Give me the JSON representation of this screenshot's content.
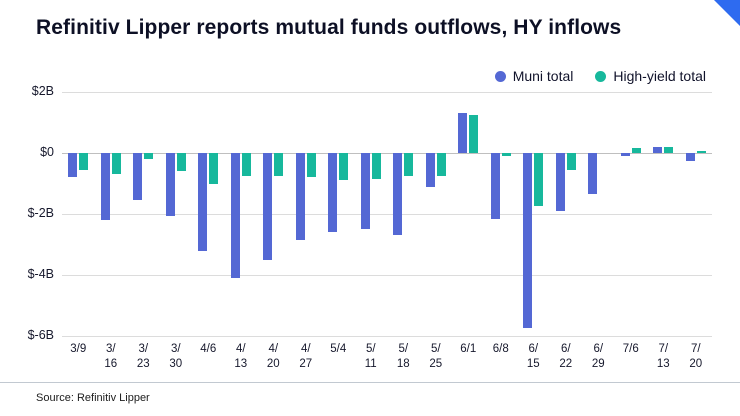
{
  "title": "Refinitiv Lipper reports mutual funds outflows, HY inflows",
  "source": "Source: Refinitiv Lipper",
  "accent_color": "#2e6bf0",
  "chart_data": {
    "type": "bar",
    "title": "Refinitiv Lipper reports mutual funds outflows, HY inflows",
    "categories": [
      "3/9",
      "3/16",
      "3/23",
      "3/30",
      "4/6",
      "4/13",
      "4/20",
      "4/27",
      "5/4",
      "5/11",
      "5/18",
      "5/25",
      "6/1",
      "6/8",
      "6/15",
      "6/22",
      "6/29",
      "7/6",
      "7/13",
      "7/20"
    ],
    "series": [
      {
        "name": "Muni total",
        "color": "#5468d4",
        "values": [
          -0.8,
          -2.2,
          -1.55,
          -2.05,
          -3.2,
          -4.1,
          -3.5,
          -2.85,
          -2.6,
          -2.5,
          -2.7,
          -1.1,
          1.3,
          -2.15,
          -5.75,
          -1.9,
          -1.35,
          -0.1,
          0.2,
          -0.25
        ]
      },
      {
        "name": "High-yield total",
        "color": "#17b89c",
        "values": [
          -0.55,
          -0.7,
          -0.2,
          -0.6,
          -1.0,
          -0.75,
          -0.75,
          -0.8,
          -0.9,
          -0.85,
          -0.75,
          -0.75,
          1.25,
          -0.1,
          -1.75,
          -0.55,
          0,
          0.15,
          0.2,
          0.05
        ]
      }
    ],
    "xlabel": "",
    "ylabel": "",
    "ylim": [
      -6,
      2
    ],
    "yticks": [
      2,
      0,
      -2,
      -4,
      -6
    ],
    "ytick_labels": [
      "$2B",
      "$0",
      "$-2B",
      "$-4B",
      "$-6B"
    ],
    "grid": true,
    "legend_position": "top-right"
  }
}
